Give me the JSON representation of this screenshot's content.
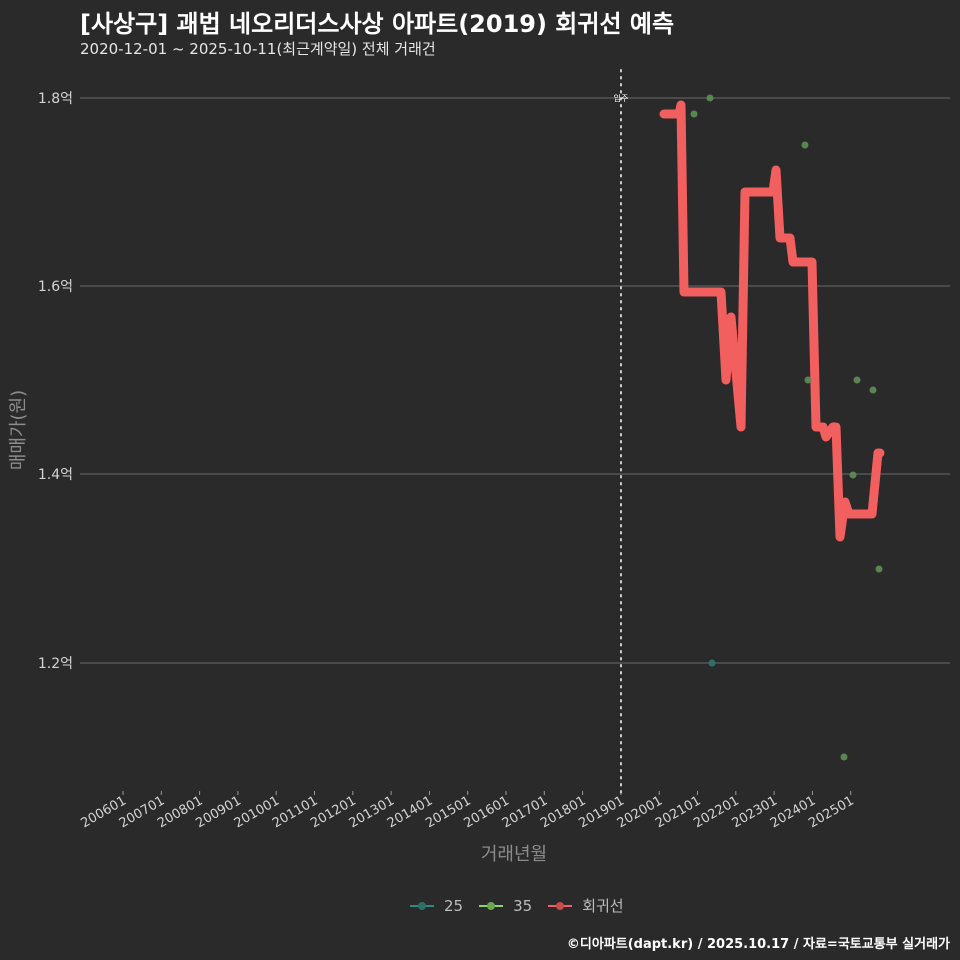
{
  "header": {
    "title": "[사상구] 괘법 네오리더스사상 아파트(2019) 회귀선 예측",
    "subtitle": "2020-12-01 ~ 2025-10-11(최근계약일) 전체 거래건"
  },
  "axes": {
    "ylabel": "매매가(원)",
    "xlabel": "거래년월",
    "yticks": [
      "1.8억",
      "1.6억",
      "1.4억",
      "1.2억"
    ],
    "xticks": [
      "200601",
      "200701",
      "200801",
      "200901",
      "201001",
      "201101",
      "201201",
      "201301",
      "201401",
      "201501",
      "201601",
      "201701",
      "201801",
      "201901",
      "202001",
      "202101",
      "202201",
      "202301",
      "202401",
      "202501"
    ]
  },
  "annotation": {
    "move_in_label": "입주",
    "move_in_x": "201901"
  },
  "legend": [
    {
      "label": "25",
      "color": "#2a8a84"
    },
    {
      "label": "35",
      "color": "#8fd16b"
    },
    {
      "label": "회귀선",
      "color": "#f06060"
    }
  ],
  "caption": "©디아파트(dapt.kr) / 2025.10.17 / 자료=국토교통부 실거래가",
  "colors": {
    "background": "#2b2a2b",
    "grid": "#6a6a6a",
    "regression": "#f25f5f",
    "point35": "#5f8f55",
    "point25": "#2e6f6a"
  },
  "chart_data": {
    "type": "scatter",
    "title": "[사상구] 괘법 네오리더스사상 아파트(2019) 회귀선 예측",
    "subtitle": "2020-12-01 ~ 2025-10-11(최근계약일) 전체 거래건",
    "xlabel": "거래년월",
    "ylabel": "매매가(원)",
    "ylim": [
      1.07,
      1.83
    ],
    "y_unit": "억",
    "grid": true,
    "legend_position": "bottom",
    "vline": {
      "x": "2019-01",
      "label": "입주",
      "style": "dotted"
    },
    "series": [
      {
        "name": "25",
        "type": "scatter",
        "points": [
          {
            "x": "2021-03",
            "y": 1.2
          }
        ]
      },
      {
        "name": "35",
        "type": "scatter",
        "points": [
          {
            "x": "2021-02",
            "y": 1.8
          },
          {
            "x": "2020-10",
            "y": 1.78
          },
          {
            "x": "2024-01",
            "y": 1.75
          },
          {
            "x": "2024-02",
            "y": 1.5
          },
          {
            "x": "2025-03",
            "y": 1.5
          },
          {
            "x": "2025-07",
            "y": 1.49
          },
          {
            "x": "2025-02",
            "y": 1.4
          },
          {
            "x": "2025-08",
            "y": 1.3
          },
          {
            "x": "2024-12",
            "y": 1.1
          }
        ]
      },
      {
        "name": "회귀선",
        "type": "line",
        "points": [
          {
            "x": "2020-01",
            "y": 1.78
          },
          {
            "x": "2020-06",
            "y": 1.78
          },
          {
            "x": "2020-08",
            "y": 1.59
          },
          {
            "x": "2021-09",
            "y": 1.59
          },
          {
            "x": "2021-11",
            "y": 1.5
          },
          {
            "x": "2021-12",
            "y": 1.57
          },
          {
            "x": "2022-02",
            "y": 1.45
          },
          {
            "x": "2022-03",
            "y": 1.7
          },
          {
            "x": "2022-12",
            "y": 1.7
          },
          {
            "x": "2023-01",
            "y": 1.72
          },
          {
            "x": "2023-02",
            "y": 1.65
          },
          {
            "x": "2023-05",
            "y": 1.62
          },
          {
            "x": "2024-01",
            "y": 1.62
          },
          {
            "x": "2024-02",
            "y": 1.45
          },
          {
            "x": "2024-05",
            "y": 1.45
          },
          {
            "x": "2024-08",
            "y": 1.44
          },
          {
            "x": "2024-09",
            "y": 1.33
          },
          {
            "x": "2024-10",
            "y": 1.37
          },
          {
            "x": "2024-11",
            "y": 1.36
          },
          {
            "x": "2025-07",
            "y": 1.36
          },
          {
            "x": "2025-08",
            "y": 1.42
          }
        ]
      }
    ]
  }
}
